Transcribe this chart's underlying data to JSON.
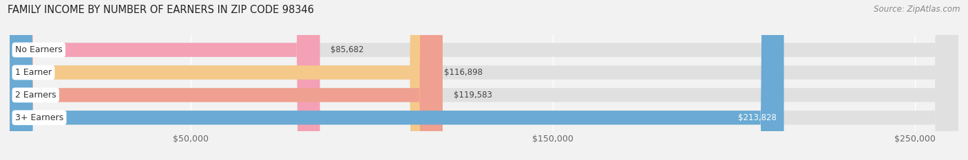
{
  "title": "FAMILY INCOME BY NUMBER OF EARNERS IN ZIP CODE 98346",
  "source": "Source: ZipAtlas.com",
  "categories": [
    "No Earners",
    "1 Earner",
    "2 Earners",
    "3+ Earners"
  ],
  "values": [
    85682,
    116898,
    119583,
    213828
  ],
  "bar_colors": [
    "#f4a0b5",
    "#f5c98a",
    "#f0a090",
    "#6aaad4"
  ],
  "xlim_min": 0,
  "xlim_max": 262000,
  "xticks": [
    50000,
    150000,
    250000
  ],
  "xtick_labels": [
    "$50,000",
    "$150,000",
    "$250,000"
  ],
  "bar_height": 0.62,
  "background_color": "#f2f2f2",
  "bar_bg_color": "#e0e0e0",
  "title_fontsize": 10.5,
  "source_fontsize": 8.5,
  "label_fontsize": 9,
  "value_fontsize": 8.5,
  "value_color_inside": "#ffffff",
  "value_color_outside": "#444444",
  "value_inside_threshold": 200000
}
